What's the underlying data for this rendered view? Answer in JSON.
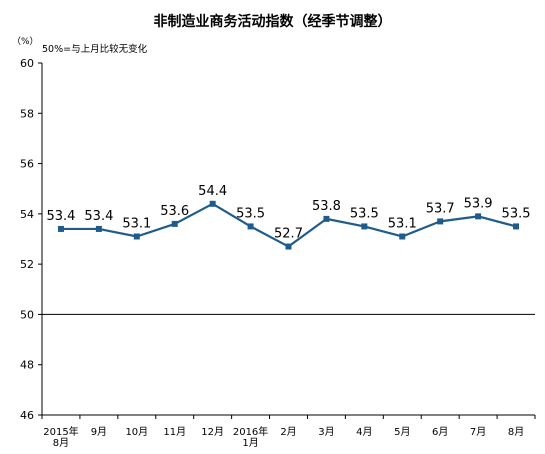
{
  "chart_data": {
    "type": "line",
    "title": "非制造业商务活动指数（经季节调整）",
    "unit_label": "（%）",
    "annotation": "50%=与上月比较无变化",
    "categories": [
      [
        "2015年",
        "8月"
      ],
      [
        "9月"
      ],
      [
        "10月"
      ],
      [
        "11月"
      ],
      [
        "12月"
      ],
      [
        "2016年",
        "1月"
      ],
      [
        "2月"
      ],
      [
        "3月"
      ],
      [
        "4月"
      ],
      [
        "5月"
      ],
      [
        "6月"
      ],
      [
        "7月"
      ],
      [
        "8月"
      ]
    ],
    "series": [
      {
        "values": [
          53.4,
          53.4,
          53.1,
          53.6,
          54.4,
          53.5,
          52.7,
          53.8,
          53.5,
          53.1,
          53.7,
          53.9,
          53.5
        ],
        "data_labels": [
          "53.4",
          "53.4",
          "53.1",
          "53.6",
          "54.4",
          "53.5",
          "52.7",
          "53.8",
          "53.5",
          "53.1",
          "53.7",
          "53.9",
          "53.5"
        ]
      }
    ],
    "ylim": [
      46,
      60
    ],
    "yticks": [
      "46",
      "48",
      "50",
      "52",
      "54",
      "56",
      "58",
      "60"
    ],
    "reference_line": 50,
    "grid": false,
    "legend": "none",
    "colors": {
      "line": "#1F5C8B",
      "axis": "#000000",
      "reference": "#000000"
    }
  }
}
